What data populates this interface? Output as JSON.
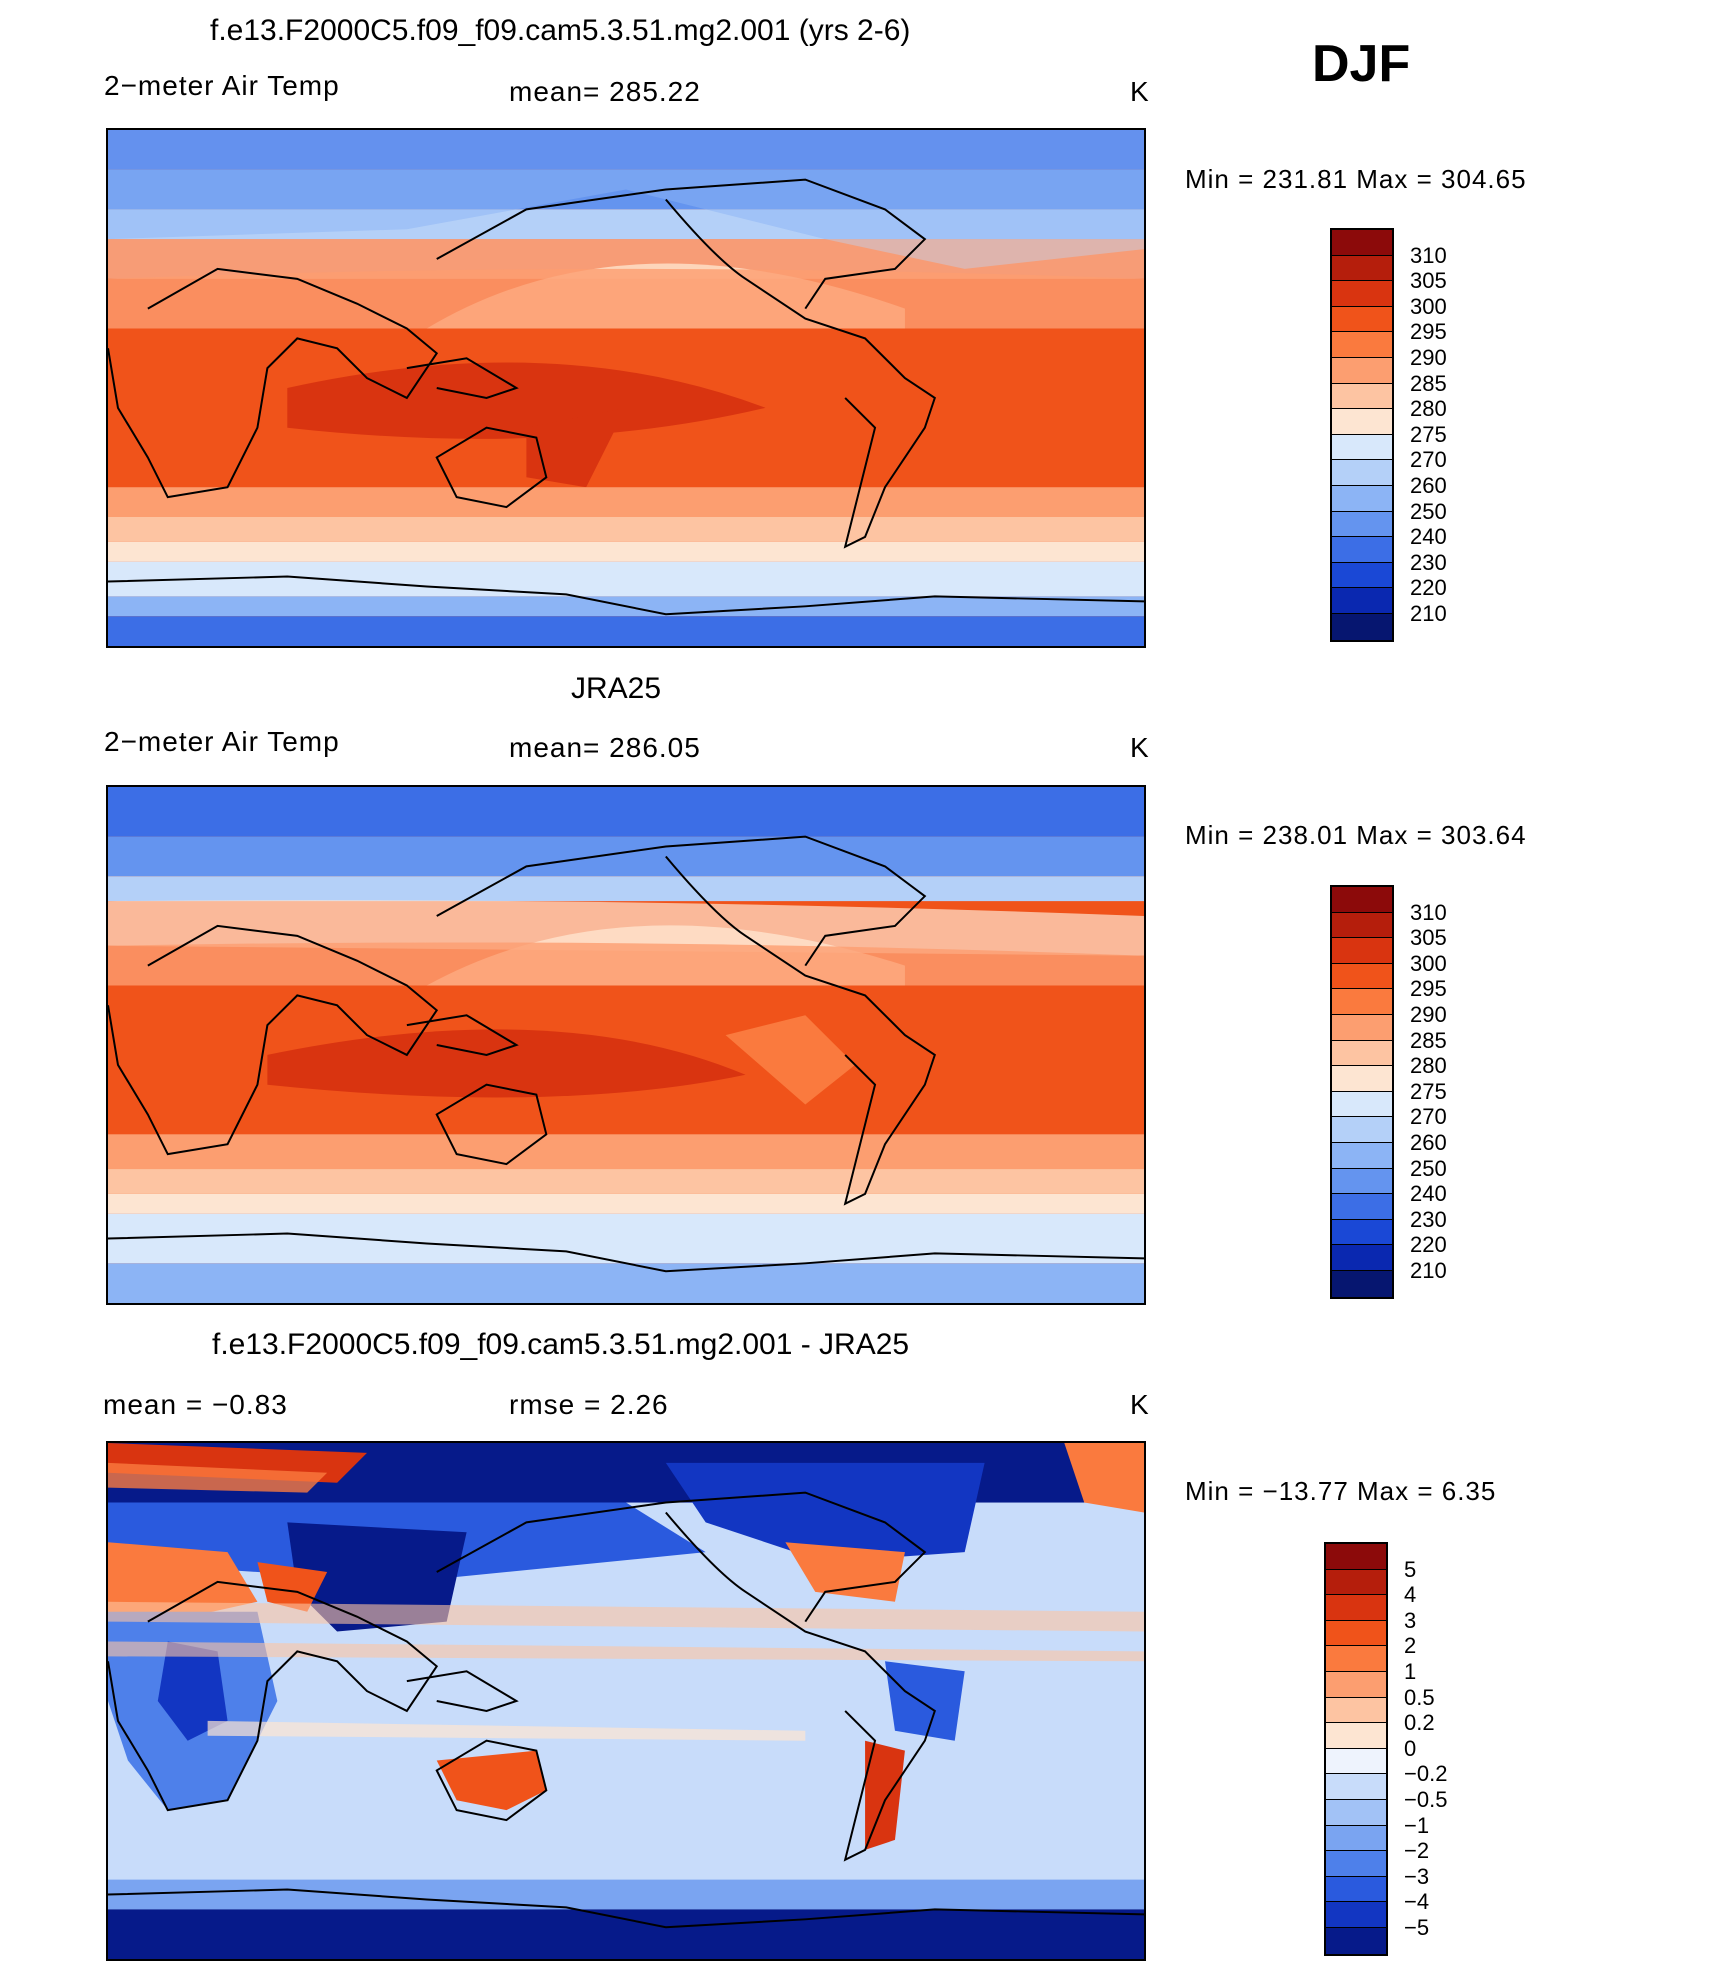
{
  "season": "DJF",
  "panels": [
    {
      "id": "model",
      "title": "f.e13.F2000C5.f09_f09.cam5.3.51.mg2.001 (yrs 2-6)",
      "left_text": "2−meter Air Temp",
      "center_text": "mean=  285.22",
      "units": "K",
      "minmax": "Min  =  231.81  Max  =  304.65",
      "legend_labels": [
        "310",
        "305",
        "300",
        "295",
        "290",
        "285",
        "280",
        "275",
        "270",
        "260",
        "250",
        "240",
        "230",
        "220",
        "210"
      ]
    },
    {
      "id": "obs",
      "title": "JRA25",
      "left_text": "2−meter Air Temp",
      "center_text": "mean=  286.05",
      "units": "K",
      "minmax": "Min  =  238.01  Max  =  303.64",
      "legend_labels": [
        "310",
        "305",
        "300",
        "295",
        "290",
        "285",
        "280",
        "275",
        "270",
        "260",
        "250",
        "240",
        "230",
        "220",
        "210"
      ]
    },
    {
      "id": "diff",
      "title": "f.e13.F2000C5.f09_f09.cam5.3.51.mg2.001 - JRA25",
      "left_text": "mean  =    −0.83",
      "center_text": "rmse  =     2.26",
      "units": "K",
      "minmax": "Min  =  −13.77  Max  =      6.35",
      "legend_labels": [
        "5",
        "4",
        "3",
        "2",
        "1",
        "0.5",
        "0.2",
        "0",
        "−0.2",
        "−0.5",
        "−1",
        "−2",
        "−3",
        "−4",
        "−5"
      ]
    }
  ],
  "colors": {
    "temp_scale": [
      "#8c0a0a",
      "#b51e0c",
      "#d93410",
      "#f0531a",
      "#fa7a3e",
      "#fc9e70",
      "#fdc4a2",
      "#fde5d2",
      "#d8e8fb",
      "#b4d0f8",
      "#8cb4f5",
      "#6494ef",
      "#3c6ee6",
      "#1a48d6",
      "#0a28b0",
      "#061670"
    ],
    "diff_scale": [
      "#8c0a0a",
      "#b51e0c",
      "#d93410",
      "#f0531a",
      "#fa7a3e",
      "#fc9e70",
      "#fdc4a2",
      "#fde5d2",
      "#eef3fd",
      "#c8dcfa",
      "#a2c2f6",
      "#7aa4f1",
      "#4e80ea",
      "#2a5ade",
      "#1236c2",
      "#061a8a"
    ]
  }
}
